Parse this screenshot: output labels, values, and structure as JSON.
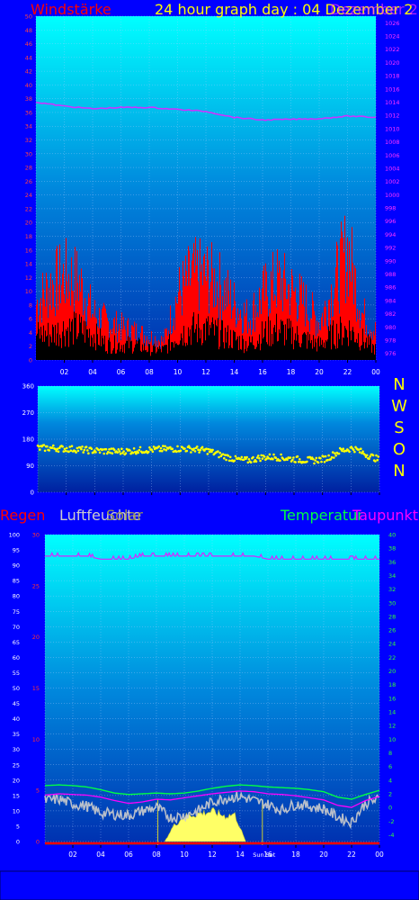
{
  "colors": {
    "page": "#0000ff",
    "plot_top": "#00ffff",
    "plot_bottom": "#0030b0",
    "wind": "#ff0000",
    "wind_avg": "#000000",
    "pressure": "#cc33ff",
    "direction": "#ffff00",
    "rain": "#ff0000",
    "humidity": "#cccccc",
    "sun": "#ffff66",
    "temperature": "#00ff44",
    "dewpoint": "#ff00ff"
  },
  "header": {
    "wind_label": "Windstärke",
    "title": "24 hour graph day : 04 Dezember 2",
    "overlap_label": "Dezember 2"
  },
  "compass": [
    "N",
    "W",
    "S",
    "O",
    "N"
  ],
  "legend": {
    "rain": "Regen",
    "humidity": "Luftfeuchte",
    "sun": "Solar",
    "temperature": "Temperatur",
    "dewpoint": "Taupunkt"
  },
  "sun_set_label": "Sun Set",
  "chart_data": [
    {
      "type": "bar",
      "name": "wind",
      "x_ticks": [
        "02",
        "04",
        "06",
        "08",
        "10",
        "12",
        "14",
        "16",
        "18",
        "20",
        "22",
        "00"
      ],
      "y_ticks": [
        "0",
        "2",
        "4",
        "6",
        "8",
        "10",
        "12",
        "14",
        "16",
        "18",
        "20",
        "22",
        "24",
        "26",
        "28",
        "30",
        "32",
        "34",
        "36",
        "38",
        "40",
        "42",
        "44",
        "46",
        "48",
        "50"
      ],
      "ylim": [
        0,
        50
      ],
      "y2_ticks": [
        "976",
        "978",
        "980",
        "982",
        "984",
        "986",
        "988",
        "990",
        "992",
        "994",
        "996",
        "998",
        "1000",
        "1002",
        "1004",
        "1006",
        "1008",
        "1010",
        "1012",
        "1014",
        "1016",
        "1018",
        "1020",
        "1022",
        "1024",
        "1026"
      ],
      "y2lim": [
        975,
        1027
      ],
      "gust_envelope": [
        12,
        16,
        18,
        17,
        10,
        8,
        7,
        6,
        5,
        4,
        14,
        18,
        18,
        16,
        12,
        9,
        14,
        17,
        15,
        12,
        8,
        16,
        24,
        10,
        6
      ],
      "wind_avg": [
        5,
        5,
        6,
        6,
        5,
        3,
        3,
        3,
        2,
        2,
        5,
        6,
        6,
        5,
        4,
        3,
        5,
        6,
        5,
        4,
        3,
        5,
        6,
        4,
        2
      ],
      "pressure_x": [
        0,
        2,
        4,
        6,
        8,
        10,
        12,
        14,
        16,
        18,
        20,
        22,
        24
      ],
      "pressure": [
        1014.0,
        1013.4,
        1013.0,
        1013.2,
        1013.2,
        1012.9,
        1012.6,
        1011.7,
        1011.3,
        1011.4,
        1011.5,
        1011.9,
        1011.7
      ]
    },
    {
      "type": "scatter",
      "name": "wind_direction",
      "x_ticks": [
        "02",
        "04",
        "06",
        "08",
        "10",
        "12",
        "14",
        "16",
        "18",
        "20",
        "22",
        "00"
      ],
      "y_ticks": [
        "0",
        "90",
        "180",
        "270",
        "360"
      ],
      "ylim": [
        0,
        360
      ],
      "direction": [
        150,
        150,
        148,
        146,
        142,
        140,
        138,
        140,
        143,
        145,
        147,
        148,
        146,
        140,
        125,
        112,
        108,
        118,
        120,
        115,
        110,
        108,
        115,
        140,
        150,
        128,
        110
      ]
    },
    {
      "type": "line",
      "name": "climate",
      "x_ticks": [
        "02",
        "04",
        "06",
        "08",
        "10",
        "12",
        "14",
        "16",
        "18",
        "20",
        "22",
        "00"
      ],
      "y_left_humidity": [
        "0",
        "5",
        "10",
        "15",
        "20",
        "25",
        "30",
        "35",
        "40",
        "45",
        "50",
        "55",
        "60",
        "65",
        "70",
        "75",
        "80",
        "85",
        "90",
        "95",
        "100"
      ],
      "y_left_rain": [
        "0",
        "5",
        "10",
        "15",
        "20",
        "25",
        "30"
      ],
      "y_right_temp": [
        "-4",
        "-2",
        "0",
        "2",
        "4",
        "6",
        "8",
        "10",
        "12",
        "14",
        "16",
        "18",
        "20",
        "22",
        "24",
        "26",
        "28",
        "30",
        "32",
        "34",
        "36",
        "38",
        "40"
      ],
      "humidity_ylim": [
        0,
        100
      ],
      "temp_ylim": [
        -5,
        40
      ],
      "humidity_x": [
        0,
        1,
        2,
        3,
        4,
        5,
        6,
        7,
        8,
        9,
        10,
        11,
        12,
        13,
        14,
        15,
        16,
        17,
        18,
        19,
        20,
        21,
        22,
        23,
        24
      ],
      "humidity": [
        93,
        93,
        93,
        93,
        92,
        92,
        92,
        93,
        93,
        93,
        93,
        93,
        93,
        93,
        93,
        93,
        92,
        92,
        92,
        92,
        92,
        92,
        92,
        92,
        92
      ],
      "temperature": [
        3.2,
        3.3,
        3.2,
        3.0,
        2.6,
        2.1,
        1.9,
        2.0,
        2.1,
        2.0,
        2.1,
        2.4,
        2.8,
        3.1,
        3.3,
        3.2,
        3.0,
        2.9,
        2.8,
        2.6,
        2.3,
        1.5,
        1.2,
        1.9,
        2.5
      ],
      "dewpoint": [
        1.8,
        2.0,
        1.9,
        1.8,
        1.5,
        1.0,
        0.6,
        0.8,
        1.2,
        1.1,
        1.4,
        1.7,
        2.0,
        2.2,
        2.4,
        2.3,
        2.0,
        1.9,
        1.7,
        1.4,
        1.1,
        0.3,
        0.0,
        1.0,
        1.6
      ],
      "dewpoint_noisy": [
        1.0,
        1.2,
        0.5,
        0.2,
        -0.8,
        -1.0,
        -1.2,
        -0.5,
        0.0,
        -1.5,
        -1.2,
        -0.5,
        0.8,
        1.4,
        1.6,
        1.0,
        0.4,
        -0.4,
        0.5,
        0.2,
        -0.2,
        -1.4,
        -2.2,
        0.6,
        1.2
      ],
      "solar_x": [
        8.6,
        9.2,
        10.0,
        11.0,
        12.0,
        13.0,
        13.6,
        14.4
      ],
      "solar": [
        0,
        0.6,
        1.0,
        1.1,
        1.2,
        1.0,
        1.1,
        0
      ],
      "sunrise": 8.1,
      "sunset": 15.6
    }
  ]
}
